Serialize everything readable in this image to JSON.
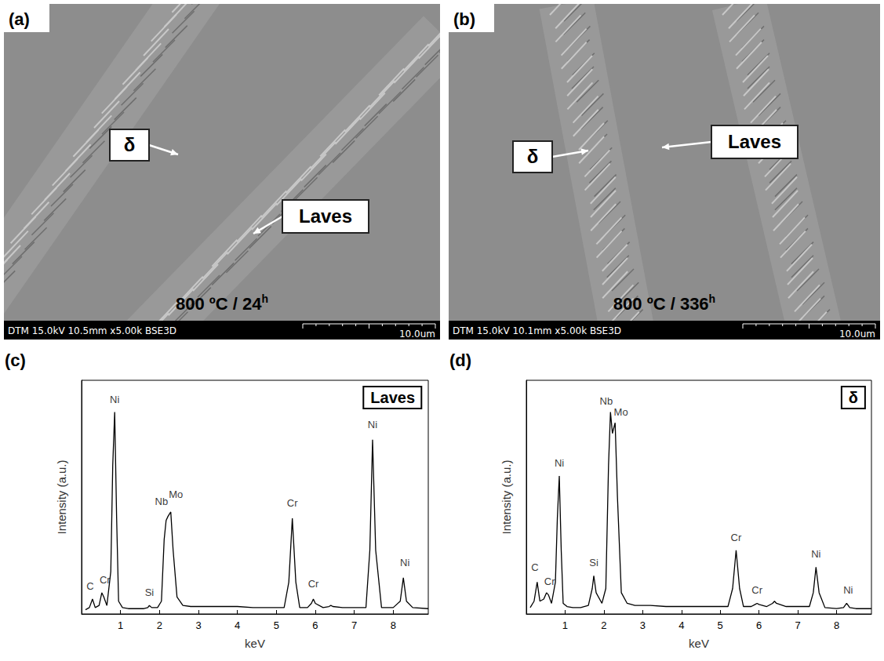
{
  "micrographs": [
    {
      "panel": "(a)",
      "condition": "800 ºC / 24",
      "condition_sup": "h",
      "info": "DTM 15.0kV 10.5mm x5.00k BSE3D",
      "scale_bar": "10.0um",
      "labels": [
        "δ",
        "Laves"
      ]
    },
    {
      "panel": "(b)",
      "condition": "800 ºC / 336",
      "condition_sup": "h",
      "info": "DTM 15.0kV 10.1mm x5.00k BSE3D",
      "scale_bar": "10.0um",
      "labels": [
        "δ",
        "Laves"
      ]
    }
  ],
  "chart_data": [
    {
      "panel": "(c)",
      "type": "line",
      "inset_label": "Laves",
      "x_label": "keV",
      "y_label": "Intensity (a.u.)",
      "x": [
        0.1,
        0.2,
        0.28,
        0.35,
        0.45,
        0.52,
        0.57,
        0.65,
        0.75,
        0.8,
        0.85,
        0.9,
        0.95,
        1.05,
        1.2,
        1.4,
        1.6,
        1.7,
        1.74,
        1.8,
        1.95,
        2.05,
        2.12,
        2.17,
        2.22,
        2.29,
        2.35,
        2.45,
        2.6,
        2.8,
        3.2,
        3.6,
        4.0,
        4.4,
        4.8,
        5.2,
        5.32,
        5.41,
        5.5,
        5.6,
        5.8,
        5.9,
        5.95,
        6.0,
        6.2,
        6.35,
        6.4,
        6.45,
        6.7,
        7.0,
        7.3,
        7.4,
        7.47,
        7.55,
        7.7,
        8.0,
        8.18,
        8.26,
        8.34,
        8.5,
        8.9
      ],
      "values": [
        2,
        3,
        7,
        3,
        4,
        10,
        8,
        4,
        20,
        70,
        95,
        45,
        6,
        3,
        2.5,
        2.5,
        2.5,
        3,
        4,
        3,
        3,
        6,
        35,
        44,
        46,
        48,
        30,
        8,
        4,
        3.5,
        3.5,
        3.5,
        3.5,
        3,
        3,
        3,
        15,
        45,
        15,
        3,
        3,
        5,
        7,
        5,
        3,
        3.5,
        4,
        3.5,
        3,
        3,
        3,
        30,
        82,
        30,
        3,
        3,
        6,
        17,
        6,
        3,
        2.5
      ],
      "color": "#000000",
      "marker": "none",
      "line_style": "solid",
      "xlim": [
        0,
        8.9
      ],
      "xticks": [
        1,
        2,
        3,
        4,
        5,
        6,
        7,
        8
      ],
      "ylim": [
        0,
        110
      ],
      "tick_labels": "x",
      "grid": false,
      "annotations": [
        {
          "text": "C",
          "x": 0.22,
          "y": 10
        },
        {
          "text": "Cr",
          "x": 0.6,
          "y": 13
        },
        {
          "text": "Ni",
          "x": 0.85,
          "y": 98
        },
        {
          "text": "Si",
          "x": 1.74,
          "y": 7
        },
        {
          "text": "Nb",
          "x": 2.05,
          "y": 50
        },
        {
          "text": "Mo",
          "x": 2.42,
          "y": 53
        },
        {
          "text": "Cr",
          "x": 5.41,
          "y": 49
        },
        {
          "text": "Cr",
          "x": 5.95,
          "y": 11
        },
        {
          "text": "Ni",
          "x": 7.47,
          "y": 86
        },
        {
          "text": "Ni",
          "x": 8.3,
          "y": 21
        }
      ]
    },
    {
      "panel": "(d)",
      "type": "line",
      "inset_label": "δ",
      "x_label": "keV",
      "y_label": "Intensity (a.u.)",
      "x": [
        0.1,
        0.2,
        0.28,
        0.35,
        0.45,
        0.52,
        0.57,
        0.65,
        0.75,
        0.8,
        0.85,
        0.9,
        0.95,
        1.05,
        1.2,
        1.4,
        1.6,
        1.7,
        1.74,
        1.8,
        1.95,
        2.05,
        2.12,
        2.17,
        2.22,
        2.29,
        2.35,
        2.45,
        2.6,
        2.8,
        3.2,
        3.6,
        4.0,
        4.4,
        4.8,
        5.2,
        5.32,
        5.41,
        5.5,
        5.6,
        5.8,
        5.9,
        5.95,
        6.0,
        6.2,
        6.35,
        6.4,
        6.45,
        6.7,
        7.0,
        7.3,
        7.4,
        7.47,
        7.55,
        7.7,
        8.0,
        8.18,
        8.26,
        8.34,
        8.5,
        8.9
      ],
      "values": [
        3,
        6,
        15,
        6,
        7,
        10,
        9,
        5,
        15,
        45,
        65,
        30,
        5,
        3.5,
        3,
        3,
        4,
        12,
        18,
        10,
        5,
        12,
        70,
        95,
        85,
        90,
        55,
        10,
        5,
        4,
        4,
        3.5,
        3.5,
        3.5,
        3.5,
        3.5,
        12,
        30,
        12,
        3.5,
        3.5,
        4.5,
        5,
        4.5,
        3.5,
        5,
        6,
        5,
        3.5,
        3.5,
        3.5,
        10,
        22,
        10,
        3,
        2.5,
        3,
        5,
        3,
        2.5,
        2.5
      ],
      "color": "#000000",
      "marker": "none",
      "line_style": "solid",
      "xlim": [
        0,
        8.9
      ],
      "xticks": [
        1,
        2,
        3,
        4,
        5,
        6,
        7,
        8
      ],
      "ylim": [
        0,
        110
      ],
      "tick_labels": "x",
      "grid": false,
      "annotations": [
        {
          "text": "C",
          "x": 0.22,
          "y": 19
        },
        {
          "text": "Cr",
          "x": 0.6,
          "y": 12
        },
        {
          "text": "Ni",
          "x": 0.85,
          "y": 68
        },
        {
          "text": "Si",
          "x": 1.74,
          "y": 21
        },
        {
          "text": "Nb",
          "x": 2.06,
          "y": 97
        },
        {
          "text": "Mo",
          "x": 2.44,
          "y": 92
        },
        {
          "text": "Cr",
          "x": 5.41,
          "y": 33
        },
        {
          "text": "Cr",
          "x": 5.95,
          "y": 8
        },
        {
          "text": "Ni",
          "x": 7.47,
          "y": 25
        },
        {
          "text": "Ni",
          "x": 8.3,
          "y": 8
        }
      ]
    }
  ]
}
